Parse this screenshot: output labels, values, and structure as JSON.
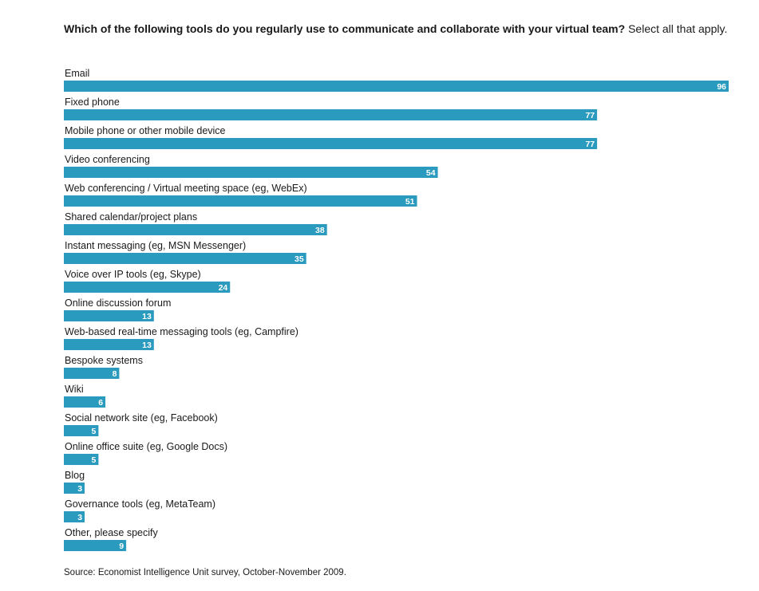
{
  "header": {
    "question": "Which of the following tools do you regularly use to communicate and collaborate with your virtual team?",
    "instruction": "Select all that apply."
  },
  "footer": {
    "source": "Source: Economist Intelligence Unit survey, October-November 2009."
  },
  "colors": {
    "bar": "#2a9abf",
    "value_text": "#ffffff"
  },
  "chart_data": {
    "type": "bar",
    "orientation": "horizontal",
    "title": "Which of the following tools do you regularly use to communicate and collaborate with your virtual team? Select all that apply.",
    "xlabel": "",
    "ylabel": "",
    "xlim": [
      0,
      96
    ],
    "grid": false,
    "categories": [
      "Email",
      "Fixed phone",
      "Mobile phone or other mobile device",
      "Video conferencing",
      "Web conferencing / Virtual meeting space (eg, WebEx)",
      "Shared calendar/project plans",
      "Instant messaging (eg, MSN Messenger)",
      "Voice over IP tools (eg, Skype)",
      "Online discussion forum",
      "Web-based real-time messaging tools (eg, Campfire)",
      "Bespoke systems",
      "Wiki",
      "Social network site (eg, Facebook)",
      "Online office suite (eg, Google Docs)",
      "Blog",
      "Governance tools (eg, MetaTeam)",
      "Other, please specify"
    ],
    "values": [
      96,
      77,
      77,
      54,
      51,
      38,
      35,
      24,
      13,
      13,
      8,
      6,
      5,
      5,
      3,
      3,
      9
    ]
  }
}
